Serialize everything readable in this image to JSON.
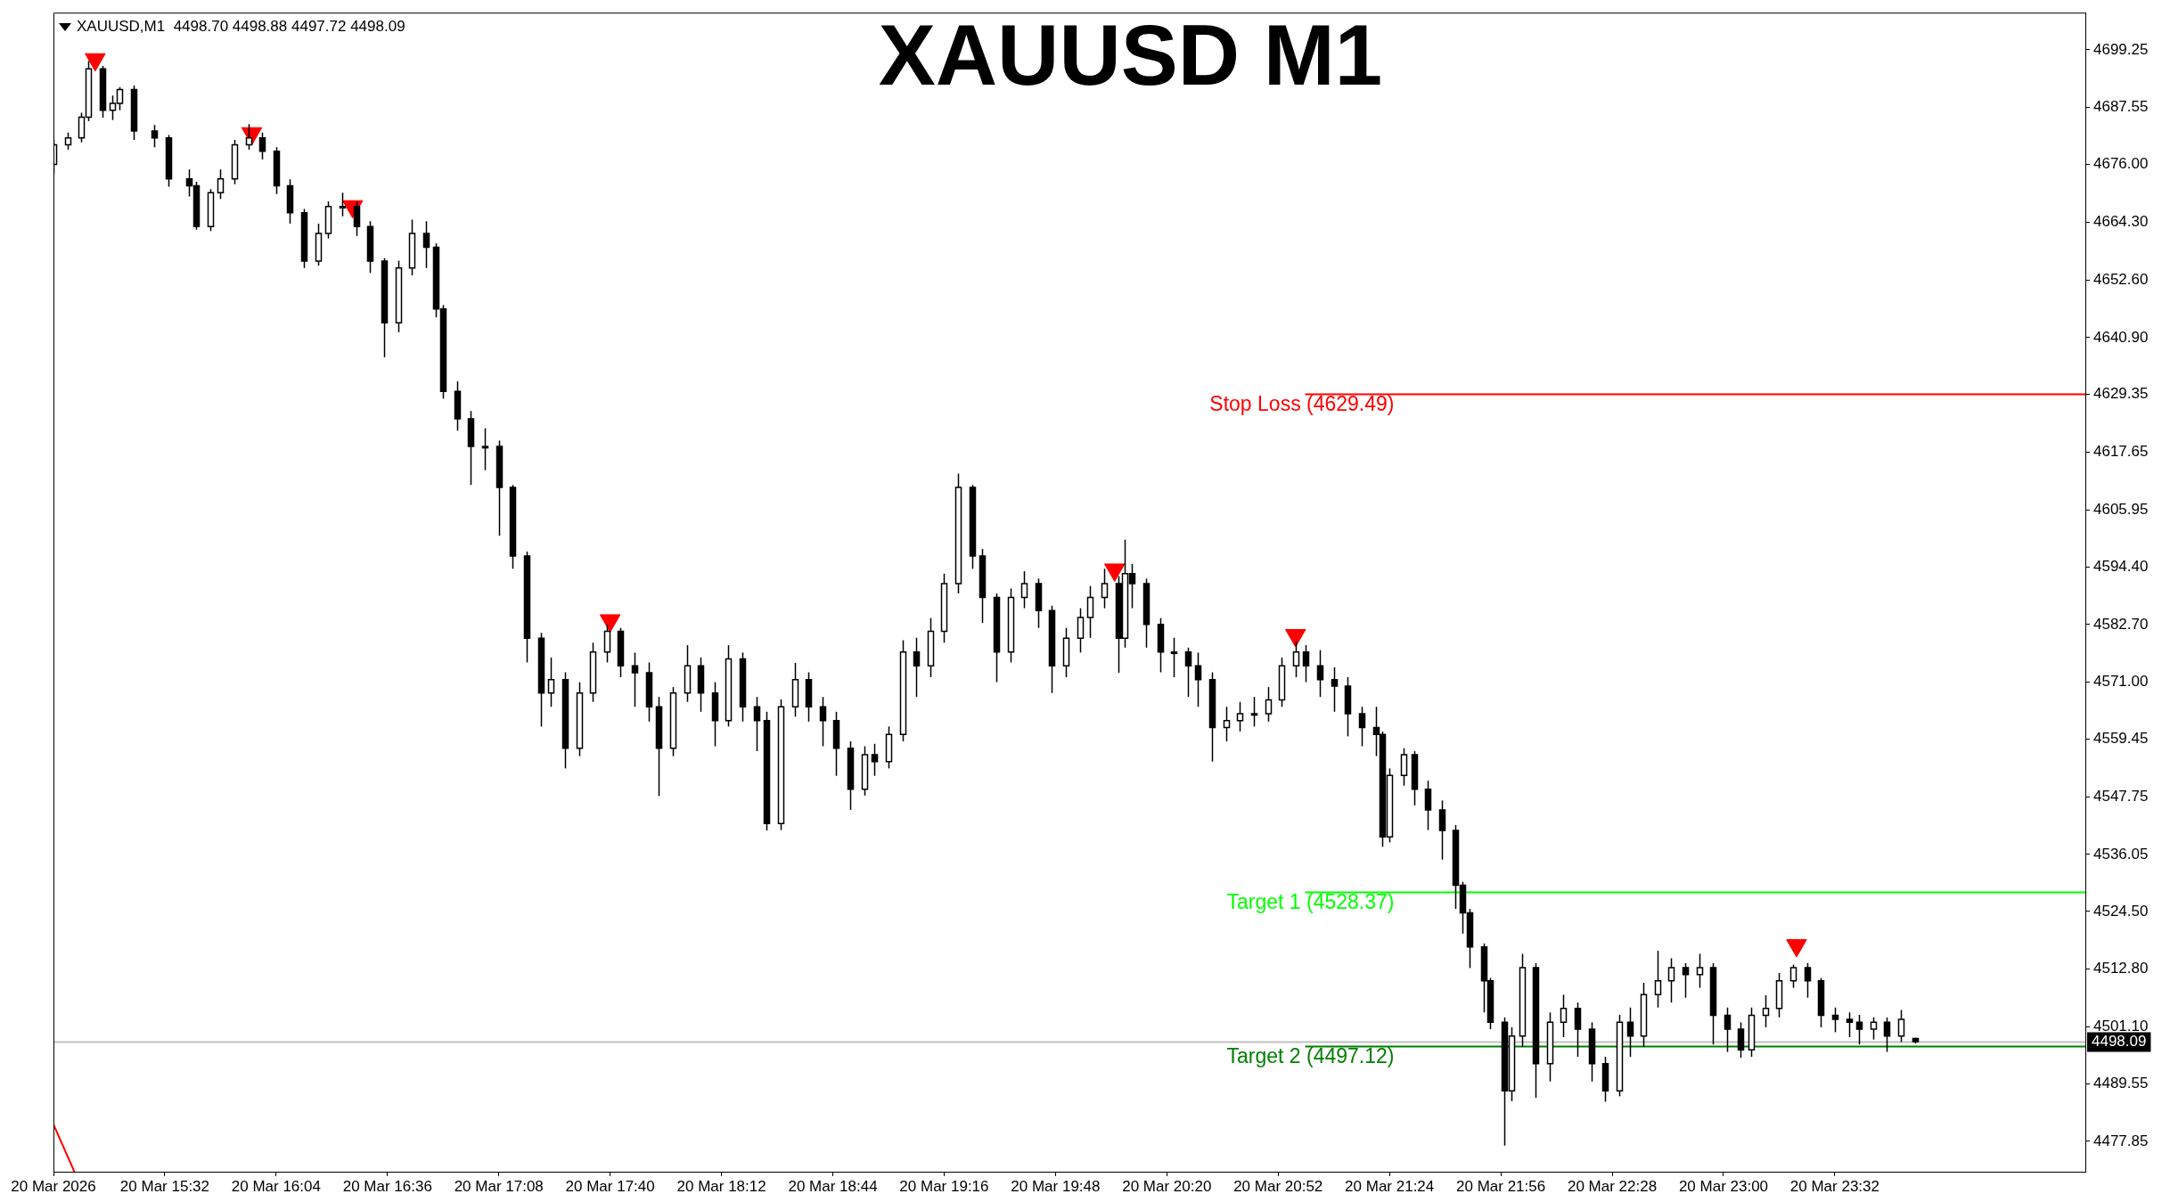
{
  "chart_data": {
    "type": "candlestick",
    "title": "XAUUSD M1",
    "annotations": [
      "XAUUSD,M1  4498.70 4498.88 4497.72 4498.09"
    ],
    "xlim": [
      "2026-03-20T15:00",
      "2026-03-21T00:44"
    ],
    "xticks": [
      {
        "value": "2026-03-20T15:00",
        "label": "20 Mar 2026"
      },
      {
        "value": "2026-03-20T15:32",
        "label": "20 Mar 15:32"
      },
      {
        "value": "2026-03-20T16:04",
        "label": "20 Mar 16:04"
      },
      {
        "value": "2026-03-20T16:36",
        "label": "20 Mar 16:36"
      },
      {
        "value": "2026-03-20T17:08",
        "label": "20 Mar 17:08"
      },
      {
        "value": "2026-03-20T17:40",
        "label": "20 Mar 17:40"
      },
      {
        "value": "2026-03-20T18:12",
        "label": "20 Mar 18:12"
      },
      {
        "value": "2026-03-20T18:44",
        "label": "20 Mar 18:44"
      },
      {
        "value": "2026-03-20T19:16",
        "label": "20 Mar 19:16"
      },
      {
        "value": "2026-03-20T19:48",
        "label": "20 Mar 19:48"
      },
      {
        "value": "2026-03-20T20:20",
        "label": "20 Mar 20:20"
      },
      {
        "value": "2026-03-20T20:52",
        "label": "20 Mar 20:52"
      },
      {
        "value": "2026-03-20T21:24",
        "label": "20 Mar 21:24"
      },
      {
        "value": "2026-03-20T21:56",
        "label": "20 Mar 21:56"
      },
      {
        "value": "2026-03-20T22:28",
        "label": "20 Mar 22:28"
      },
      {
        "value": "2026-03-20T23:00",
        "label": "20 Mar 23:00"
      },
      {
        "value": "2026-03-20T23:32",
        "label": "20 Mar 23:32"
      }
    ],
    "ylim": [
      4471.7,
      4706.8
    ],
    "yticks": [
      {
        "value": 4699.25,
        "label": "4699.25"
      },
      {
        "value": 4687.55,
        "label": "4687.55"
      },
      {
        "value": 4676,
        "label": "4676.00"
      },
      {
        "value": 4664.3,
        "label": "4664.30"
      },
      {
        "value": 4652.6,
        "label": "4652.60"
      },
      {
        "value": 4640.9,
        "label": "4640.90"
      },
      {
        "value": 4629.35,
        "label": "4629.35"
      },
      {
        "value": 4617.65,
        "label": "4617.65"
      },
      {
        "value": 4605.95,
        "label": "4605.95"
      },
      {
        "value": 4594.4,
        "label": "4594.40"
      },
      {
        "value": 4582.7,
        "label": "4582.70"
      },
      {
        "value": 4571,
        "label": "4571.00"
      },
      {
        "value": 4559.45,
        "label": "4559.45"
      },
      {
        "value": 4547.75,
        "label": "4547.75"
      },
      {
        "value": 4536.05,
        "label": "4536.05"
      },
      {
        "value": 4524.5,
        "label": "4524.50"
      },
      {
        "value": 4512.8,
        "label": "4512.80"
      },
      {
        "value": 4501.1,
        "label": "4501.10"
      },
      {
        "value": 4489.55,
        "label": "4489.55"
      },
      {
        "value": 4477.85,
        "label": "4477.85"
      }
    ],
    "grid": false,
    "legend": false,
    "ref_lines": [
      {
        "axis": "y",
        "value": 4629.49,
        "label": "Stop Loss (4629.49)",
        "color": "#ff0000"
      },
      {
        "axis": "y",
        "value": 4528.37,
        "label": "Target 1 (4528.37)",
        "color": "#00ff00"
      },
      {
        "axis": "y",
        "value": 4497.12,
        "label": "Target 2 (4497.12)",
        "color": "#008000"
      },
      {
        "axis": "y",
        "value": 4498.09,
        "label": "4498.09",
        "color": "#c0c0c0"
      }
    ],
    "series": [
      {
        "color": "#000000",
        "colors": [
          "#ffffff",
          "#ffffff",
          "#ffffff",
          "#ffffff",
          "#000000",
          "#ffffff",
          "#ffffff",
          "#000000",
          "#000000",
          "#000000",
          "#000000",
          "#000000",
          "#ffffff",
          "#ffffff",
          "#ffffff",
          "#ffffff",
          "#000000",
          "#000000",
          "#000000",
          "#000000",
          "#ffffff",
          "#ffffff",
          "#ffffff",
          "#000000",
          "#000000",
          "#000000",
          "#ffffff",
          "#ffffff",
          "#000000",
          "#000000",
          "#000000",
          "#000000",
          "#000000",
          "#ffffff",
          "#000000",
          "#000000",
          "#000000",
          "#000000",
          "#ffffff",
          "#000000",
          "#ffffff",
          "#ffffff",
          "#ffffff",
          "#000000",
          "#000000",
          "#000000",
          "#000000",
          "#ffffff",
          "#ffffff",
          "#000000",
          "#000000",
          "#ffffff",
          "#000000",
          "#000000",
          "#000000",
          "#ffffff",
          "#ffffff",
          "#000000",
          "#000000",
          "#000000",
          "#000000",
          "#ffffff",
          "#000000",
          "#ffffff",
          "#ffffff",
          "#000000",
          "#ffffff",
          "#ffffff",
          "#ffffff",
          "#000000",
          "#000000",
          "#000000",
          "#ffffff",
          "#ffffff",
          "#000000",
          "#000000",
          "#ffffff",
          "#ffffff",
          "#ffffff",
          "#ffffff",
          "#000000",
          "#ffffff",
          "#000000",
          "#000000",
          "#000000",
          "#ffffff",
          "#000000",
          "#000000",
          "#000000",
          "#ffffff",
          "#ffffff",
          "#ffffff",
          "#ffffff",
          "#ffffff",
          "#ffffff",
          "#000000",
          "#000000",
          "#000000",
          "#000000",
          "#000000",
          "#000000",
          "#000000",
          "#ffffff",
          "#ffffff",
          "#000000",
          "#000000",
          "#000000",
          "#000000",
          "#000000",
          "#000000",
          "#000000",
          "#000000",
          "#000000",
          "#ffffff",
          "#ffffff",
          "#000000",
          "#ffffff",
          "#ffffff",
          "#000000",
          "#000000",
          "#000000",
          "#ffffff",
          "#000000",
          "#ffffff",
          "#ffffff",
          "#ffffff",
          "#000000",
          "#ffffff",
          "#000000",
          "#000000",
          "#000000",
          "#ffffff",
          "#ffffff",
          "#ffffff",
          "#ffffff",
          "#000000",
          "#000000",
          "#000000",
          "#000000",
          "#000000",
          "#ffffff",
          "#000000",
          "#ffffff",
          "#000000"
        ],
        "x": [
          "2026-03-20T15:00",
          "2026-03-20T15:04",
          "2026-03-20T15:08",
          "2026-03-20T15:10",
          "2026-03-20T15:14",
          "2026-03-20T15:17",
          "2026-03-20T15:19",
          "2026-03-20T15:23",
          "2026-03-20T15:29",
          "2026-03-20T15:33",
          "2026-03-20T15:39",
          "2026-03-20T15:41",
          "2026-03-20T15:45",
          "2026-03-20T15:48",
          "2026-03-20T15:52",
          "2026-03-20T15:56",
          "2026-03-20T16:00",
          "2026-03-20T16:04",
          "2026-03-20T16:08",
          "2026-03-20T16:12",
          "2026-03-20T16:16",
          "2026-03-20T16:19",
          "2026-03-20T16:23",
          "2026-03-20T16:27",
          "2026-03-20T16:31",
          "2026-03-20T16:35",
          "2026-03-20T16:39",
          "2026-03-20T16:43",
          "2026-03-20T16:47",
          "2026-03-20T16:50",
          "2026-03-20T16:52",
          "2026-03-20T16:56",
          "2026-03-20T17:00",
          "2026-03-20T17:04",
          "2026-03-20T17:08",
          "2026-03-20T17:12",
          "2026-03-20T17:16",
          "2026-03-20T17:20",
          "2026-03-20T17:23",
          "2026-03-20T17:27",
          "2026-03-20T17:31",
          "2026-03-20T17:35",
          "2026-03-20T17:39",
          "2026-03-20T17:43",
          "2026-03-20T17:47",
          "2026-03-20T17:51",
          "2026-03-20T17:54",
          "2026-03-20T17:58",
          "2026-03-20T18:02",
          "2026-03-20T18:06",
          "2026-03-20T18:10",
          "2026-03-20T18:14",
          "2026-03-20T18:18",
          "2026-03-20T18:22",
          "2026-03-20T18:25",
          "2026-03-20T18:29",
          "2026-03-20T18:33",
          "2026-03-20T18:37",
          "2026-03-20T18:41",
          "2026-03-20T18:45",
          "2026-03-20T18:49",
          "2026-03-20T18:53",
          "2026-03-20T18:56",
          "2026-03-20T19:00",
          "2026-03-20T19:04",
          "2026-03-20T19:08",
          "2026-03-20T19:12",
          "2026-03-20T19:16",
          "2026-03-20T19:20",
          "2026-03-20T19:24",
          "2026-03-20T19:27",
          "2026-03-20T19:31",
          "2026-03-20T19:35",
          "2026-03-20T19:39",
          "2026-03-20T19:43",
          "2026-03-20T19:47",
          "2026-03-20T19:51",
          "2026-03-20T19:55",
          "2026-03-20T19:58",
          "2026-03-20T20:02",
          "2026-03-20T20:06",
          "2026-03-20T20:08",
          "2026-03-20T20:10",
          "2026-03-20T20:14",
          "2026-03-20T20:18",
          "2026-03-20T20:22",
          "2026-03-20T20:26",
          "2026-03-20T20:29",
          "2026-03-20T20:33",
          "2026-03-20T20:37",
          "2026-03-20T20:41",
          "2026-03-20T20:45",
          "2026-03-20T20:49",
          "2026-03-20T20:53",
          "2026-03-20T20:57",
          "2026-03-20T21:00",
          "2026-03-20T21:04",
          "2026-03-20T21:08",
          "2026-03-20T21:12",
          "2026-03-20T21:16",
          "2026-03-20T21:20",
          "2026-03-20T21:22",
          "2026-03-20T21:24",
          "2026-03-20T21:28",
          "2026-03-20T21:31",
          "2026-03-20T21:35",
          "2026-03-20T21:39",
          "2026-03-20T21:43",
          "2026-03-20T21:45",
          "2026-03-20T21:47",
          "2026-03-20T21:51",
          "2026-03-20T21:53",
          "2026-03-20T21:57",
          "2026-03-20T21:59",
          "2026-03-20T22:02",
          "2026-03-20T22:06",
          "2026-03-20T22:10",
          "2026-03-20T22:14",
          "2026-03-20T22:18",
          "2026-03-20T22:22",
          "2026-03-20T22:26",
          "2026-03-20T22:30",
          "2026-03-20T22:33",
          "2026-03-20T22:37",
          "2026-03-20T22:41",
          "2026-03-20T22:45",
          "2026-03-20T22:49",
          "2026-03-20T22:53",
          "2026-03-20T22:57",
          "2026-03-20T23:01",
          "2026-03-20T23:05",
          "2026-03-20T23:08",
          "2026-03-20T23:12",
          "2026-03-20T23:16",
          "2026-03-20T23:20",
          "2026-03-20T23:24",
          "2026-03-20T23:28",
          "2026-03-20T23:32",
          "2026-03-20T23:36",
          "2026-03-20T23:39",
          "2026-03-20T23:43",
          "2026-03-20T23:47",
          "2026-03-20T23:51",
          "2026-03-20T23:55"
        ],
        "ohlc": [
          [
            4676,
            4681,
            4674,
            4680.0
          ],
          [
            4680.0,
            4682.5,
            4679,
            4681.4
          ],
          [
            4681.4,
            4686.5,
            4680.5,
            4685.6
          ],
          [
            4685.6,
            4697.0,
            4684.8,
            4695.4
          ],
          [
            4695.4,
            4696.0,
            4685.5,
            4687.0
          ],
          [
            4687.0,
            4690,
            4685,
            4688.4
          ],
          [
            4688.4,
            4691.7,
            4687,
            4691.2
          ],
          [
            4691.2,
            4692,
            4681,
            4682.8
          ],
          [
            4682.8,
            4684,
            4679.5,
            4681.4
          ],
          [
            4681.4,
            4682,
            4671.5,
            4673.1
          ],
          [
            4673.1,
            4675,
            4669.5,
            4671.7
          ],
          [
            4671.7,
            4672.5,
            4662.8,
            4663.4
          ],
          [
            4663.4,
            4671,
            4662.5,
            4670.3
          ],
          [
            4670.3,
            4675,
            4669,
            4673.1
          ],
          [
            4673.1,
            4681,
            4672,
            4680.0
          ],
          [
            4680.0,
            4684.2,
            4679,
            4681.4
          ],
          [
            4681.4,
            4682.5,
            4677,
            4678.7
          ],
          [
            4678.7,
            4679.5,
            4670,
            4671.7
          ],
          [
            4671.7,
            4673,
            4664,
            4666.2
          ],
          [
            4666.2,
            4667,
            4655.0,
            4656.4
          ],
          [
            4656.4,
            4664,
            4655.5,
            4662.0
          ],
          [
            4662.0,
            4668.5,
            4661,
            4667.5
          ],
          [
            4667.5,
            4670.3,
            4665.5,
            4667.5
          ],
          [
            4667.5,
            4668.5,
            4661.5,
            4663.4
          ],
          [
            4663.4,
            4664.5,
            4654,
            4656.4
          ],
          [
            4656.4,
            4657,
            4636.9,
            4643.9
          ],
          [
            4643.9,
            4656.5,
            4642,
            4655.0
          ],
          [
            4655.0,
            4664.8,
            4653.5,
            4662.0
          ],
          [
            4662.0,
            4664.5,
            4655,
            4659.2
          ],
          [
            4659.2,
            4660,
            4645,
            4646.7
          ],
          [
            4646.7,
            4647.5,
            4628.5,
            4630.0
          ],
          [
            4630.0,
            4632,
            4622,
            4624.4
          ],
          [
            4624.4,
            4626,
            4611,
            4618.8
          ],
          [
            4618.8,
            4622.5,
            4614,
            4618.8
          ],
          [
            4618.8,
            4620,
            4600.7,
            4610.5
          ],
          [
            4610.5,
            4611,
            4594,
            4596.6
          ],
          [
            4596.6,
            4597.5,
            4575,
            4579.9
          ],
          [
            4579.9,
            4581,
            4562,
            4568.8
          ],
          [
            4568.8,
            4576,
            4566,
            4571.5
          ],
          [
            4571.5,
            4573,
            4553.5,
            4557.6
          ],
          [
            4557.6,
            4571,
            4556,
            4568.8
          ],
          [
            4568.8,
            4579,
            4567,
            4577.1
          ],
          [
            4577.1,
            4582.6,
            4575,
            4581.3
          ],
          [
            4581.3,
            4582,
            4572,
            4574.3
          ],
          [
            4574.3,
            4577,
            4566,
            4572.9
          ],
          [
            4572.9,
            4575,
            4563,
            4566.0
          ],
          [
            4566.0,
            4568,
            4547.9,
            4557.6
          ],
          [
            4557.6,
            4570,
            4556,
            4568.8
          ],
          [
            4568.8,
            4578.5,
            4567,
            4574.3
          ],
          [
            4574.3,
            4576,
            4565,
            4568.8
          ],
          [
            4568.8,
            4571,
            4558,
            4563.2
          ],
          [
            4563.2,
            4578.5,
            4562,
            4575.7
          ],
          [
            4575.7,
            4577,
            4563,
            4566.0
          ],
          [
            4566.0,
            4568,
            4557,
            4563.2
          ],
          [
            4563.2,
            4565,
            4540.9,
            4542.3
          ],
          [
            4542.3,
            4567.5,
            4541,
            4566.0
          ],
          [
            4566.0,
            4574.9,
            4564,
            4571.5
          ],
          [
            4571.5,
            4573,
            4563,
            4566.0
          ],
          [
            4566.0,
            4568,
            4558,
            4563.2
          ],
          [
            4563.2,
            4565,
            4552,
            4557.6
          ],
          [
            4557.6,
            4559,
            4545.1,
            4549.3
          ],
          [
            4549.3,
            4558,
            4548,
            4556.3
          ],
          [
            4556.3,
            4558.5,
            4552,
            4554.9
          ],
          [
            4554.9,
            4562,
            4553.5,
            4560.4
          ],
          [
            4560.4,
            4579.5,
            4559,
            4577.1
          ],
          [
            4577.1,
            4580,
            4568,
            4574.3
          ],
          [
            4574.3,
            4584,
            4572,
            4581.3
          ],
          [
            4581.3,
            4593,
            4579,
            4591.0
          ],
          [
            4591.0,
            4613.3,
            4589,
            4610.5
          ],
          [
            4610.5,
            4611,
            4594,
            4596.6
          ],
          [
            4596.6,
            4598,
            4583,
            4588.2
          ],
          [
            4588.2,
            4589,
            4571.0,
            4577.1
          ],
          [
            4577.1,
            4590,
            4575,
            4588.2
          ],
          [
            4588.2,
            4593.5,
            4586,
            4591.0
          ],
          [
            4591.0,
            4592,
            4582,
            4585.5
          ],
          [
            4585.5,
            4586.5,
            4568.8,
            4574.3
          ],
          [
            4574.3,
            4582,
            4572,
            4579.9
          ],
          [
            4579.9,
            4586,
            4577,
            4584.1
          ],
          [
            4584.1,
            4590.5,
            4580,
            4588.2
          ],
          [
            4588.2,
            4594,
            4586,
            4591.0
          ],
          [
            4591.0,
            4592.5,
            4572.9,
            4579.9
          ],
          [
            4579.9,
            4599.9,
            4578,
            4593
          ],
          [
            4593,
            4595,
            4586,
            4591.0
          ],
          [
            4591.0,
            4592,
            4578,
            4582.7
          ],
          [
            4582.7,
            4584,
            4573,
            4577.1
          ],
          [
            4577.1,
            4580,
            4572,
            4577.1
          ],
          [
            4577.1,
            4578,
            4568,
            4574.3
          ],
          [
            4574.3,
            4577,
            4566,
            4571.5
          ],
          [
            4571.5,
            4573,
            4554.9,
            4561.8
          ],
          [
            4561.8,
            4566,
            4559,
            4563.2
          ],
          [
            4563.2,
            4567,
            4561,
            4564.6
          ],
          [
            4564.6,
            4568,
            4562,
            4564.6
          ],
          [
            4564.6,
            4570,
            4563,
            4567.4
          ],
          [
            4567.4,
            4576,
            4566,
            4574.3
          ],
          [
            4574.3,
            4579.3,
            4572,
            4577.1
          ],
          [
            4577.1,
            4578.5,
            4571,
            4574.3
          ],
          [
            4574.3,
            4577.5,
            4568,
            4571.5
          ],
          [
            4571.5,
            4574,
            4565,
            4570.2
          ],
          [
            4570.2,
            4572,
            4560,
            4564.6
          ],
          [
            4564.6,
            4566,
            4558,
            4561.8
          ],
          [
            4561.8,
            4566,
            4556,
            4560.4
          ],
          [
            4560.4,
            4561,
            4537.6,
            4539.6
          ],
          [
            4539.6,
            4553.5,
            4538.5,
            4552.1
          ],
          [
            4552.1,
            4557.6,
            4550,
            4556.3
          ],
          [
            4556.3,
            4557,
            4546,
            4549.3
          ],
          [
            4549.3,
            4551,
            4541,
            4545.1
          ],
          [
            4545.1,
            4547,
            4535,
            4540.9
          ],
          [
            4540.9,
            4542,
            4525,
            4529.8
          ],
          [
            4529.8,
            4530.5,
            4520,
            4524.2
          ],
          [
            4524.2,
            4525,
            4513,
            4517.3
          ],
          [
            4517.3,
            4518,
            4504,
            4510.4
          ],
          [
            4510.4,
            4511,
            4500.6,
            4502.0
          ],
          [
            4502.0,
            4503,
            4477.0,
            4488.1
          ],
          [
            4488.1,
            4501,
            4486,
            4499.2
          ],
          [
            4499.2,
            4515.9,
            4497,
            4513.1
          ],
          [
            4513.1,
            4514,
            4486.7,
            4493.6
          ],
          [
            4493.6,
            4504,
            4490,
            4502.0
          ],
          [
            4502.0,
            4507.6,
            4499,
            4504.8
          ],
          [
            4504.8,
            4506,
            4495,
            4500.6
          ],
          [
            4500.6,
            4502,
            4490,
            4493.6
          ],
          [
            4493.6,
            4495,
            4485.9,
            4488.1
          ],
          [
            4488.1,
            4503.5,
            4487,
            4502.0
          ],
          [
            4502.0,
            4505,
            4495,
            4499.2
          ],
          [
            4499.2,
            4510,
            4497,
            4507.6
          ],
          [
            4507.6,
            4516.5,
            4505,
            4510.4
          ],
          [
            4510.4,
            4515,
            4506,
            4513.1
          ],
          [
            4513.1,
            4514,
            4507,
            4511.7
          ],
          [
            4511.7,
            4515.9,
            4509,
            4513.1
          ],
          [
            4513.1,
            4514,
            4497.5,
            4503.4
          ],
          [
            4503.4,
            4505,
            4496,
            4500.6
          ],
          [
            4500.6,
            4502,
            4494.8,
            4496.4
          ],
          [
            4496.4,
            4505,
            4495,
            4503.4
          ],
          [
            4503.4,
            4507.5,
            4501,
            4504.8
          ],
          [
            4504.8,
            4512,
            4503,
            4510.4
          ],
          [
            4510.4,
            4513.7,
            4509,
            4513.1
          ],
          [
            4513.1,
            4514,
            4507,
            4510.4
          ],
          [
            4510.4,
            4511,
            4501,
            4503.4
          ],
          [
            4503.4,
            4505,
            4500,
            4502.6
          ],
          [
            4502.6,
            4504,
            4499,
            4502.0
          ],
          [
            4502.0,
            4503.5,
            4497.5,
            4500.6
          ],
          [
            4500.6,
            4503,
            4498.5,
            4502.0
          ],
          [
            4502.0,
            4503,
            4496,
            4499.2
          ],
          [
            4499.2,
            4504.5,
            4498,
            4502.6
          ],
          [
            4498.7,
            4498.88,
            4497.72,
            4498.09
          ]
        ]
      },
      {
        "type": "scatter",
        "color": "#ff0000",
        "marker": "triangle",
        "x": [
          "2026-03-20T15:12",
          "2026-03-20T15:57",
          "2026-03-20T16:26",
          "2026-03-20T17:40",
          "2026-03-20T20:05",
          "2026-03-20T20:57",
          "2026-03-20T23:21"
        ],
        "values": [
          4697.3,
          4682.3,
          4667.5,
          4583.5,
          4593.8,
          4580.5,
          4517.6
        ]
      },
      {
        "type": "line",
        "color": "#ff0000",
        "x": [
          "2026-03-20T15:00",
          "2026-03-20T15:06"
        ],
        "values": [
          4481.3,
          4471.7
        ]
      }
    ]
  }
}
